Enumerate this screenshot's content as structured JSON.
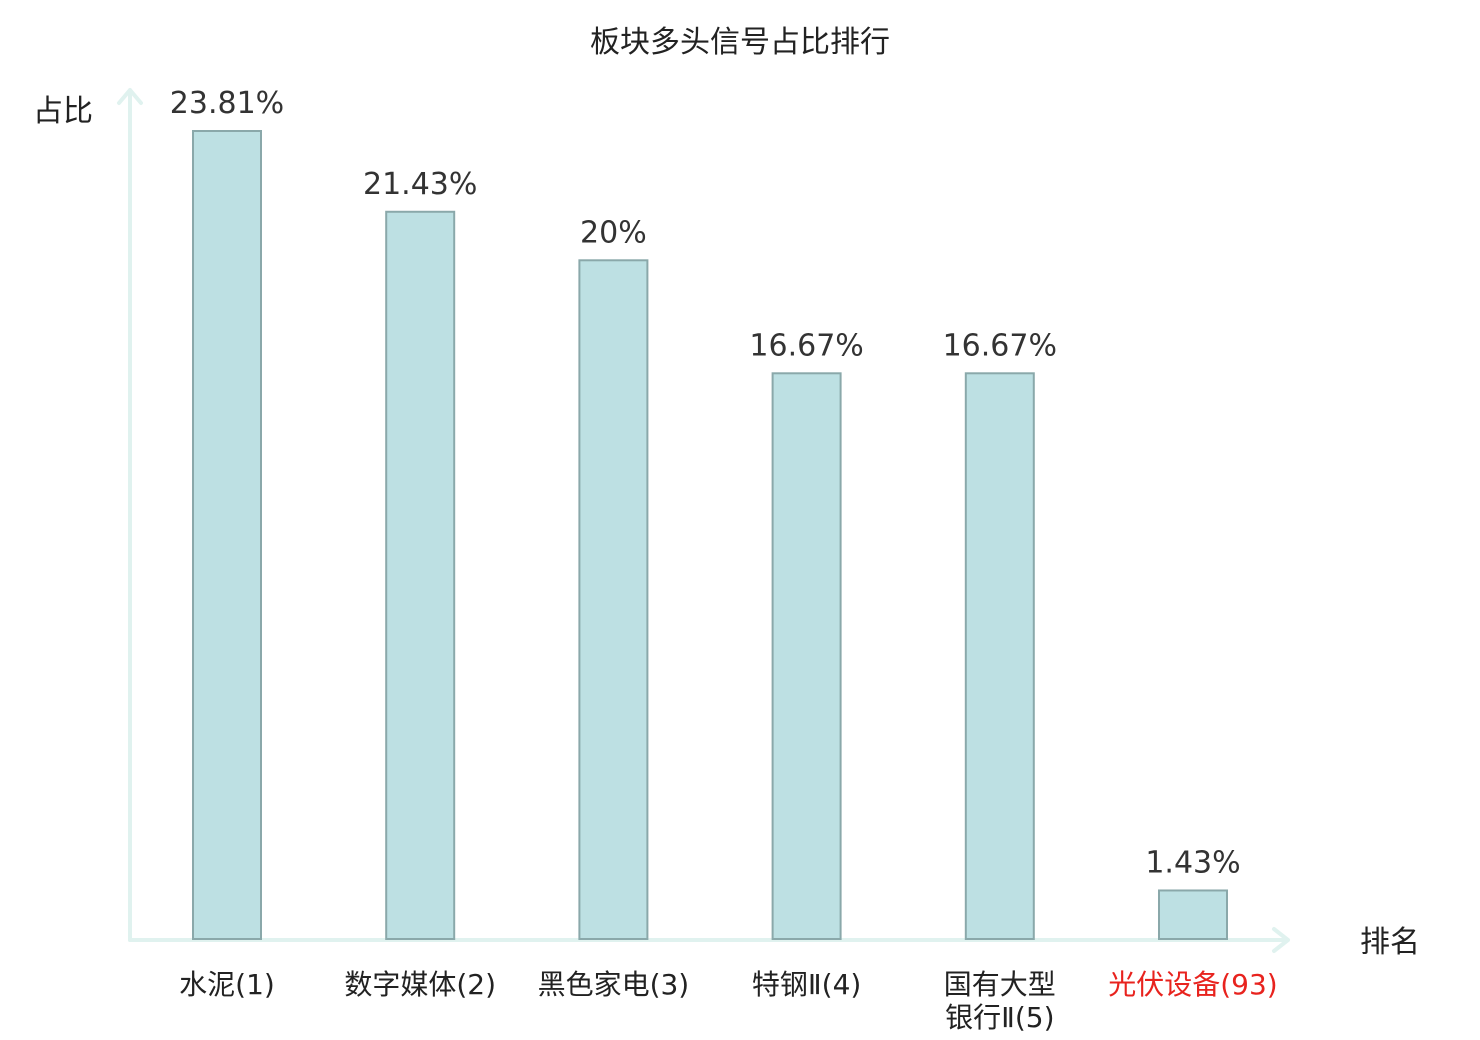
{
  "chart_data": {
    "type": "bar",
    "title": "板块多头信号占比排行",
    "ylabel": "占比",
    "xlabel": "排名",
    "ylim": [
      0,
      25
    ],
    "grid": false,
    "highlight_color": "#e8231e",
    "bar_color": "#bde0e3",
    "categories": [
      {
        "lines": [
          "水泥(1)"
        ],
        "highlight": false
      },
      {
        "lines": [
          "数字媒体(2)"
        ],
        "highlight": false
      },
      {
        "lines": [
          "黑色家电(3)"
        ],
        "highlight": false
      },
      {
        "lines": [
          "特钢Ⅱ(4)"
        ],
        "highlight": false
      },
      {
        "lines": [
          "国有大型",
          "银行Ⅱ(5)"
        ],
        "highlight": false
      },
      {
        "lines": [
          "光伏设备(93)"
        ],
        "highlight": true
      }
    ],
    "values": [
      23.81,
      21.43,
      20,
      16.67,
      16.67,
      1.43
    ],
    "value_labels": [
      "23.81%",
      "21.43%",
      "20%",
      "16.67%",
      "16.67%",
      "1.43%"
    ]
  }
}
